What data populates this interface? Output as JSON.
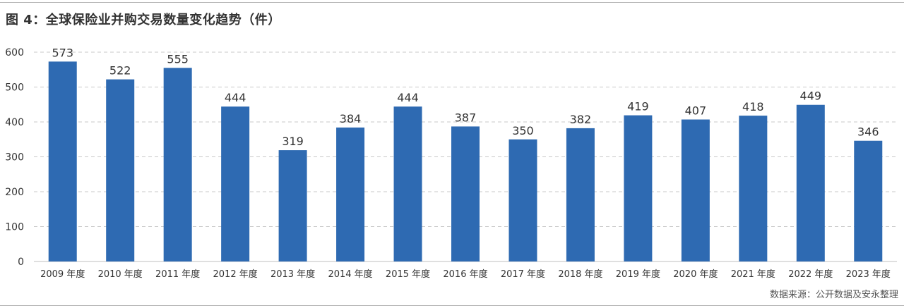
{
  "title": "图 4：全球保险业并购交易数量变化趋势（件）",
  "source": "数据来源：公开数据及安永整理",
  "colors": {
    "bar": "#2e6ab2",
    "grid": "#c8c8c8",
    "text": "#333333"
  },
  "chart_data": {
    "type": "bar",
    "title": "图 4：全球保险业并购交易数量变化趋势（件）",
    "categories": [
      "2009 年度",
      "2010 年度",
      "2011 年度",
      "2012 年度",
      "2013 年度",
      "2014 年度",
      "2015 年度",
      "2016 年度",
      "2017 年度",
      "2018 年度",
      "2019 年度",
      "2020 年度",
      "2021 年度",
      "2022 年度",
      "2023 年度"
    ],
    "values": [
      573,
      522,
      555,
      444,
      319,
      384,
      444,
      387,
      350,
      382,
      419,
      407,
      418,
      449,
      346
    ],
    "ylim": [
      0,
      600
    ],
    "yticks": [
      0,
      100,
      200,
      300,
      400,
      500,
      600
    ],
    "grid": true,
    "grid_style": "dashed",
    "data_labels": true,
    "legend": "none"
  }
}
